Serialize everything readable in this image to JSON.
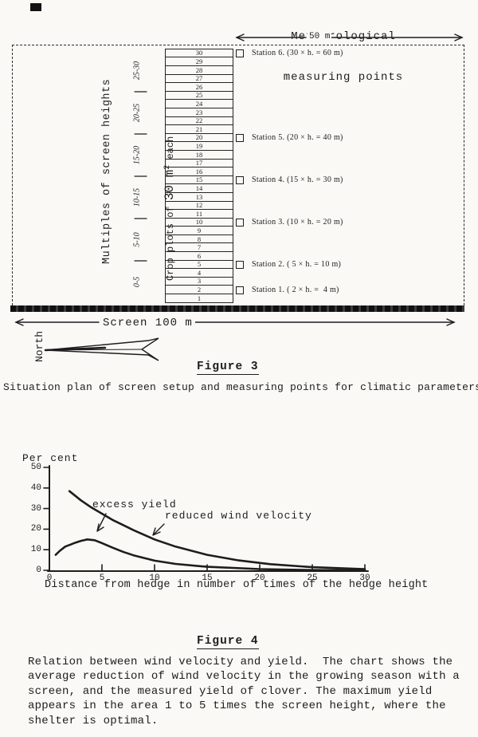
{
  "figure3": {
    "title_line1": "Meteorological",
    "title_line2": "measuring points",
    "top_arrow_label": "50 m",
    "left_axis_label": "Multiples of screen heights",
    "range_labels": [
      "25-30",
      "20-25",
      "15-20",
      "10-15",
      "5-10",
      "0-5"
    ],
    "crop_label_prefix": "Crop plots of ",
    "crop_label_value": "30 m",
    "crop_label_sup": "2",
    "crop_label_suffix": " each",
    "plot_numbers": [
      30,
      29,
      28,
      27,
      26,
      25,
      24,
      23,
      22,
      21,
      20,
      19,
      18,
      17,
      16,
      15,
      14,
      13,
      12,
      11,
      10,
      9,
      8,
      7,
      6,
      5,
      4,
      3,
      2,
      1
    ],
    "stations": [
      {
        "label": "Station 6. (30 × h. = 60 m)",
        "row": 30
      },
      {
        "label": "Station 5. (20 × h. = 40 m)",
        "row": 20
      },
      {
        "label": "Station 4. (15 × h. = 30 m)",
        "row": 15
      },
      {
        "label": "Station 3. (10 × h. = 20 m)",
        "row": 10
      },
      {
        "label": "Station 2. ( 5 × h. = 10 m)",
        "row": 5
      },
      {
        "label": "Station 1. ( 2 × h. =  4 m)",
        "row": 2
      }
    ],
    "screen_arrow_label": "Screen 100 m",
    "north_label": "North",
    "figure_label": "Figure 3",
    "caption": "Situation plan of screen setup and measuring points for climatic parameters."
  },
  "figure4": {
    "figure_label": "Figure 4",
    "caption_lines": [
      "Relation between wind velocity and yield.  The chart shows the",
      "average reduction of wind velocity in the growing season with a",
      "screen, and the measured yield of clover. The maximum yield",
      "appears in the area 1 to 5 times the screen height, where the",
      "shelter is optimal."
    ]
  },
  "chart_data": {
    "type": "line",
    "title": "",
    "ylabel": "Per cent",
    "xlabel": "Distance from hedge in number of times of the hedge height",
    "xlim": [
      0,
      30
    ],
    "ylim": [
      0,
      50
    ],
    "x_ticks": [
      0,
      5,
      10,
      15,
      20,
      25,
      30
    ],
    "y_ticks": [
      50,
      40,
      30,
      20,
      10,
      0
    ],
    "grid": false,
    "legend_position": "inline-annotations",
    "series": [
      {
        "name": "excess yield",
        "x": [
          0.6,
          1,
          1.5,
          2,
          2.5,
          3,
          3.6,
          4.3,
          5,
          6,
          7,
          8,
          10,
          12,
          15,
          20,
          25,
          30
        ],
        "y": [
          7.5,
          9.5,
          11.5,
          12.5,
          13.5,
          14.3,
          15,
          14.6,
          13.2,
          11,
          9,
          7.3,
          4.7,
          3.1,
          1.7,
          0.6,
          0.1,
          0
        ]
      },
      {
        "name": "reduced wind velocity",
        "x": [
          1.9,
          3,
          4,
          5,
          6,
          7,
          8,
          10,
          12,
          15,
          18,
          21,
          25,
          30
        ],
        "y": [
          38.5,
          34,
          30.5,
          27.5,
          24.5,
          22,
          19.5,
          15,
          11.5,
          7.5,
          4.8,
          3,
          1.5,
          0.6
        ]
      }
    ]
  },
  "colors": {
    "ink": "#1d1d1d",
    "paper": "#faf9f6"
  }
}
